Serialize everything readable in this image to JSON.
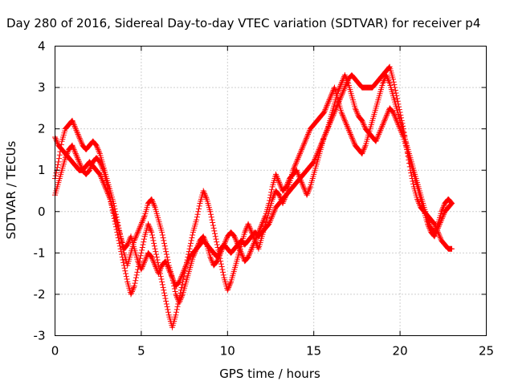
{
  "chart_data": {
    "type": "scatter",
    "title": "Day 280 of 2016, Sidereal Day-to-day VTEC variation (SDTVAR) for receiver p4",
    "xlabel": "GPS time / hours",
    "ylabel": "SDTVAR / TECUs",
    "xlim": [
      0,
      25
    ],
    "ylim": [
      -3,
      4
    ],
    "xticks": [
      "0",
      "5",
      "10",
      "15",
      "20",
      "25"
    ],
    "yticks": [
      "-3",
      "-2",
      "-1",
      "0",
      "1",
      "2",
      "3",
      "4"
    ],
    "grid": true,
    "marker": "+",
    "color": "#ff0000",
    "series": [
      {
        "x": [
          0.0,
          0.2,
          0.4,
          0.6,
          0.8,
          1.0,
          1.2,
          1.4,
          1.6,
          1.8,
          2.0,
          2.2,
          2.4,
          2.6,
          2.8,
          3.0,
          3.2,
          3.4,
          3.6,
          3.8,
          4.0,
          4.2,
          4.4,
          4.6,
          4.8,
          5.0,
          5.2,
          5.4,
          5.6,
          5.8,
          6.0,
          6.2,
          6.4,
          6.6,
          6.8,
          7.0,
          7.2,
          7.4,
          7.6,
          7.8,
          8.0,
          8.2,
          8.4,
          8.6,
          8.8,
          9.0,
          9.2,
          9.4,
          9.6,
          9.8,
          10.0,
          10.2,
          10.4,
          10.6,
          10.8,
          11.0,
          11.2,
          11.4,
          11.6,
          11.8,
          12.0,
          12.2,
          12.4,
          12.6,
          12.8,
          13.0,
          13.2,
          13.4,
          13.6,
          13.8,
          14.0,
          14.2,
          14.4,
          14.6,
          14.8,
          15.0,
          15.2,
          15.4,
          15.6,
          15.8,
          16.0,
          16.2,
          16.4,
          16.6,
          16.8,
          17.0,
          17.2,
          17.4,
          17.6,
          17.8,
          18.0,
          18.2,
          18.4,
          18.6,
          18.8,
          19.0,
          19.2,
          19.4,
          19.6,
          19.8,
          20.0,
          20.2,
          20.4,
          20.6,
          20.8,
          21.0,
          21.2,
          21.4,
          21.6,
          21.8,
          22.0,
          22.2,
          22.4,
          22.6,
          22.8,
          23.0
        ],
        "y": [
          1.8,
          1.6,
          1.5,
          1.4,
          1.3,
          1.2,
          1.1,
          1.0,
          1.0,
          1.1,
          1.2,
          1.1,
          1.0,
          0.9,
          0.7,
          0.5,
          0.3,
          0.0,
          -0.3,
          -0.6,
          -0.9,
          -0.8,
          -0.6,
          -0.9,
          -1.2,
          -1.4,
          -1.2,
          -1.0,
          -1.1,
          -1.3,
          -1.5,
          -1.3,
          -1.2,
          -1.4,
          -1.6,
          -1.8,
          -1.7,
          -1.5,
          -1.3,
          -1.1,
          -1.0,
          -0.9,
          -0.8,
          -0.7,
          -0.8,
          -0.9,
          -1.0,
          -1.1,
          -0.9,
          -0.8,
          -0.9,
          -1.0,
          -0.9,
          -0.8,
          -0.7,
          -0.8,
          -0.7,
          -0.6,
          -0.5,
          -0.6,
          -0.5,
          -0.4,
          -0.3,
          -0.1,
          0.1,
          0.2,
          0.3,
          0.4,
          0.5,
          0.6,
          0.7,
          0.8,
          0.9,
          1.0,
          1.1,
          1.2,
          1.4,
          1.6,
          1.8,
          2.0,
          2.2,
          2.4,
          2.6,
          2.8,
          3.0,
          3.2,
          3.3,
          3.2,
          3.1,
          3.0,
          3.0,
          3.0,
          3.0,
          3.1,
          3.2,
          3.3,
          3.4,
          3.5,
          3.2,
          2.8,
          2.4,
          2.0,
          1.5,
          1.0,
          0.6,
          0.3,
          0.1,
          0.0,
          -0.1,
          -0.2,
          -0.3,
          -0.5,
          -0.7,
          -0.8,
          -0.9,
          -0.9
        ]
      },
      {
        "x": [
          0.0,
          0.2,
          0.4,
          0.6,
          0.8,
          1.0,
          1.2,
          1.4,
          1.6,
          1.8,
          2.0,
          2.2,
          2.4,
          2.6,
          2.8,
          3.0,
          3.2,
          3.4,
          3.6,
          3.8,
          4.0,
          4.2,
          4.4,
          4.6,
          4.8,
          5.0,
          5.2,
          5.4,
          5.6,
          5.8,
          6.0,
          6.2,
          6.4,
          6.6,
          6.8,
          7.0,
          7.2,
          7.4,
          7.6,
          7.8,
          8.0,
          8.2,
          8.4,
          8.6,
          8.8,
          9.0,
          9.2,
          9.4,
          9.6,
          9.8,
          10.0,
          10.2,
          10.4,
          10.6,
          10.8,
          11.0,
          11.2,
          11.4,
          11.6,
          11.8,
          12.0,
          12.2,
          12.4,
          12.6,
          12.8,
          13.0,
          13.2,
          13.4,
          13.6,
          13.8,
          14.0,
          14.2,
          14.4,
          14.6,
          14.8,
          15.0,
          15.2,
          15.4,
          15.6,
          15.8,
          16.0,
          16.2,
          16.4,
          16.6,
          16.8,
          17.0,
          17.2,
          17.4,
          17.6,
          17.8,
          18.0,
          18.2,
          18.4,
          18.6,
          18.8,
          19.0,
          19.2,
          19.4,
          19.6,
          19.8,
          20.0,
          20.2,
          20.4,
          20.6,
          20.8,
          21.0,
          21.2,
          21.4,
          21.6,
          21.8,
          22.0,
          22.2,
          22.4,
          22.6,
          22.8,
          23.0
        ],
        "y": [
          0.8,
          1.2,
          1.7,
          2.0,
          2.1,
          2.2,
          2.0,
          1.8,
          1.6,
          1.5,
          1.6,
          1.7,
          1.6,
          1.4,
          1.1,
          0.8,
          0.5,
          0.2,
          -0.2,
          -0.6,
          -1.0,
          -1.3,
          -1.0,
          -0.7,
          -0.5,
          -0.3,
          -0.1,
          0.2,
          0.3,
          0.1,
          -0.2,
          -0.5,
          -0.9,
          -1.3,
          -1.6,
          -2.0,
          -2.2,
          -2.0,
          -1.7,
          -1.4,
          -1.1,
          -0.9,
          -0.7,
          -0.6,
          -0.8,
          -1.1,
          -1.3,
          -1.2,
          -1.0,
          -0.8,
          -0.6,
          -0.5,
          -0.6,
          -0.8,
          -1.0,
          -1.2,
          -1.1,
          -0.9,
          -0.7,
          -0.5,
          -0.3,
          -0.1,
          0.2,
          0.6,
          0.9,
          0.7,
          0.5,
          0.6,
          0.8,
          0.9,
          1.0,
          0.8,
          0.6,
          0.4,
          0.6,
          0.9,
          1.2,
          1.5,
          1.8,
          2.0,
          2.3,
          2.6,
          2.9,
          3.1,
          3.3,
          3.1,
          2.8,
          2.5,
          2.3,
          2.2,
          2.0,
          1.9,
          1.8,
          1.7,
          1.9,
          2.1,
          2.3,
          2.5,
          2.4,
          2.2,
          2.0,
          1.8,
          1.5,
          1.2,
          0.9,
          0.6,
          0.3,
          0.0,
          -0.3,
          -0.5,
          -0.6,
          -0.4,
          -0.2,
          0.0,
          0.1,
          0.2
        ]
      },
      {
        "x": [
          0.0,
          0.2,
          0.4,
          0.6,
          0.8,
          1.0,
          1.2,
          1.4,
          1.6,
          1.8,
          2.0,
          2.2,
          2.4,
          2.6,
          2.8,
          3.0,
          3.2,
          3.4,
          3.6,
          3.8,
          4.0,
          4.2,
          4.4,
          4.6,
          4.8,
          5.0,
          5.2,
          5.4,
          5.6,
          5.8,
          6.0,
          6.2,
          6.4,
          6.6,
          6.8,
          7.0,
          7.2,
          7.4,
          7.6,
          7.8,
          8.0,
          8.2,
          8.4,
          8.6,
          8.8,
          9.0,
          9.2,
          9.4,
          9.6,
          9.8,
          10.0,
          10.2,
          10.4,
          10.6,
          10.8,
          11.0,
          11.2,
          11.4,
          11.6,
          11.8,
          12.0,
          12.2,
          12.4,
          12.6,
          12.8,
          13.0,
          13.2,
          13.4,
          13.6,
          13.8,
          14.0,
          14.2,
          14.4,
          14.6,
          14.8,
          15.0,
          15.2,
          15.4,
          15.6,
          15.8,
          16.0,
          16.2,
          16.4,
          16.6,
          16.8,
          17.0,
          17.2,
          17.4,
          17.6,
          17.8,
          18.0,
          18.2,
          18.4,
          18.6,
          18.8,
          19.0,
          19.2,
          19.4,
          19.6,
          19.8,
          20.0,
          20.2,
          20.4,
          20.6,
          20.8,
          21.0,
          21.2,
          21.4,
          21.6,
          21.8,
          22.0,
          22.2,
          22.4,
          22.6,
          22.8,
          23.0
        ],
        "y": [
          0.4,
          0.7,
          1.0,
          1.3,
          1.5,
          1.6,
          1.4,
          1.2,
          1.0,
          0.9,
          1.0,
          1.2,
          1.3,
          1.2,
          1.0,
          0.7,
          0.3,
          -0.1,
          -0.5,
          -0.9,
          -1.3,
          -1.7,
          -2.0,
          -1.8,
          -1.4,
          -1.0,
          -0.6,
          -0.3,
          -0.5,
          -0.9,
          -1.3,
          -1.7,
          -2.1,
          -2.5,
          -2.8,
          -2.5,
          -2.1,
          -1.7,
          -1.3,
          -0.9,
          -0.5,
          -0.2,
          0.2,
          0.5,
          0.3,
          0.0,
          -0.4,
          -0.8,
          -1.2,
          -1.6,
          -1.9,
          -1.7,
          -1.4,
          -1.1,
          -0.8,
          -0.5,
          -0.3,
          -0.5,
          -0.7,
          -0.9,
          -0.6,
          -0.3,
          0.0,
          0.3,
          0.5,
          0.4,
          0.2,
          0.4,
          0.7,
          1.0,
          1.2,
          1.4,
          1.6,
          1.8,
          2.0,
          2.1,
          2.2,
          2.3,
          2.4,
          2.6,
          2.8,
          3.0,
          2.7,
          2.4,
          2.2,
          2.0,
          1.8,
          1.6,
          1.5,
          1.4,
          1.6,
          1.9,
          2.2,
          2.5,
          2.8,
          3.1,
          3.3,
          3.1,
          2.8,
          2.5,
          2.2,
          1.9,
          1.6,
          1.3,
          1.0,
          0.7,
          0.4,
          0.1,
          -0.2,
          -0.4,
          -0.5,
          -0.3,
          0.0,
          0.2,
          0.3,
          0.2
        ]
      }
    ]
  }
}
